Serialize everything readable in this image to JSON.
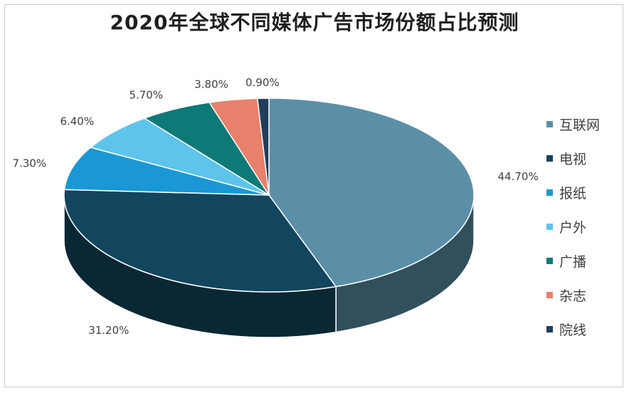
{
  "title": "2020年全球不同媒体广告市场份额占比预测",
  "chart_data": {
    "type": "pie",
    "title": "2020年全球不同媒体广告市场份额占比预测",
    "legend_position": "right",
    "slices": [
      {
        "label": "互联网",
        "value": 44.7,
        "display": "44.70%",
        "color": "#5b8fa8"
      },
      {
        "label": "电视",
        "value": 31.2,
        "display": "31.20%",
        "color": "#12465e"
      },
      {
        "label": "报纸",
        "value": 7.3,
        "display": "7.30%",
        "color": "#1a98d5"
      },
      {
        "label": "户外",
        "value": 6.4,
        "display": "6.40%",
        "color": "#5ec4ec"
      },
      {
        "label": "广播",
        "value": 5.7,
        "display": "5.70%",
        "color": "#0e7a78"
      },
      {
        "label": "杂志",
        "value": 3.8,
        "display": "3.80%",
        "color": "#e8806c"
      },
      {
        "label": "院线",
        "value": 0.9,
        "display": "0.90%",
        "color": "#1f3f5b"
      }
    ]
  }
}
